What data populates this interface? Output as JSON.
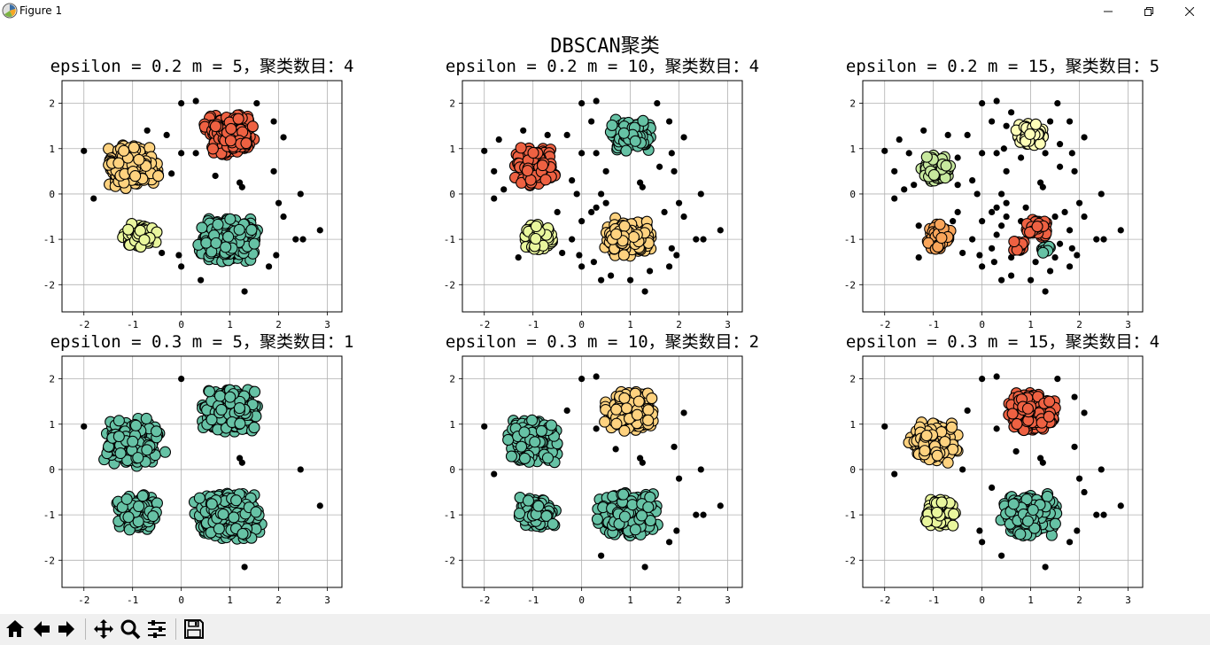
{
  "window": {
    "title": "Figure 1",
    "icons": [
      "matplotlib-logo-icon",
      "minimize-icon",
      "restore-icon",
      "close-icon"
    ]
  },
  "figure": {
    "suptitle": "DBSCAN聚类"
  },
  "toolbar": {
    "buttons": [
      "home-icon",
      "back-icon",
      "forward-icon",
      "pan-icon",
      "zoom-icon",
      "configure-subplots-icon",
      "save-icon"
    ]
  },
  "colors": {
    "noise": "#000000",
    "edge": "#000000",
    "spectral_red": "#ee6142",
    "spectral_orange": "#f9a55a",
    "spectral_light_orange": "#fed27f",
    "spectral_yellow_green": "#e9f69d",
    "spectral_green": "#c7e89e",
    "spectral_teal": "#66c2a5",
    "grid": "#b0b0b0"
  },
  "chart_data": [
    {
      "type": "scatter",
      "title": "epsilon = 0.2  m = 5，聚类数目：4",
      "xlim": [
        -2.45,
        3.3
      ],
      "ylim": [
        -2.6,
        2.5
      ],
      "xticks": [
        "-2",
        "-1",
        "0",
        "1",
        "2",
        "3"
      ],
      "yticks": [
        "2",
        "1",
        "0",
        "-1",
        "-2"
      ],
      "grid": true,
      "clusters": [
        {
          "center": [
            1.0,
            1.3
          ],
          "spread": [
            0.38,
            0.33
          ],
          "color": "#ee6142"
        },
        {
          "center": [
            -1.0,
            0.6
          ],
          "spread": [
            0.38,
            0.35
          ],
          "color": "#fed27f"
        },
        {
          "center": [
            -0.85,
            -0.95
          ],
          "spread": [
            0.25,
            0.22
          ],
          "color": "#e9f69d"
        },
        {
          "center": [
            0.95,
            -1.0
          ],
          "spread": [
            0.45,
            0.35
          ],
          "color": "#66c2a5"
        }
      ],
      "noise": [
        [
          -2.0,
          0.95
        ],
        [
          -1.8,
          -0.1
        ],
        [
          0.0,
          2.0
        ],
        [
          0.3,
          2.05
        ],
        [
          1.55,
          2.0
        ],
        [
          -0.3,
          1.3
        ],
        [
          0.0,
          0.9
        ],
        [
          1.2,
          0.25
        ],
        [
          1.25,
          0.15
        ],
        [
          0.7,
          0.4
        ],
        [
          2.1,
          1.25
        ],
        [
          1.3,
          -2.15
        ],
        [
          2.45,
          0.0
        ],
        [
          2.85,
          -0.8
        ],
        [
          2.35,
          -1.0
        ],
        [
          2.5,
          -1.0
        ],
        [
          1.8,
          -1.6
        ],
        [
          0.0,
          -1.6
        ],
        [
          -0.4,
          -1.3
        ],
        [
          2.1,
          -0.5
        ],
        [
          0.3,
          0.9
        ],
        [
          1.9,
          0.5
        ],
        [
          -0.2,
          0.45
        ],
        [
          -0.05,
          -1.35
        ],
        [
          0.4,
          -1.9
        ],
        [
          1.95,
          -1.35
        ],
        [
          2.0,
          -0.2
        ],
        [
          -0.7,
          1.4
        ],
        [
          1.9,
          1.6
        ]
      ]
    },
    {
      "type": "scatter",
      "title": "epsilon = 0.2  m = 10，聚类数目：4",
      "xlim": [
        -2.45,
        3.3
      ],
      "ylim": [
        -2.6,
        2.5
      ],
      "xticks": [
        "-2",
        "-1",
        "0",
        "1",
        "2",
        "3"
      ],
      "yticks": [
        "2",
        "1",
        "0",
        "-1",
        "-2"
      ],
      "grid": true,
      "clusters": [
        {
          "center": [
            1.0,
            1.3
          ],
          "spread": [
            0.3,
            0.25
          ],
          "color": "#66c2a5"
        },
        {
          "center": [
            -0.95,
            0.6
          ],
          "spread": [
            0.3,
            0.3
          ],
          "color": "#ee6142"
        },
        {
          "center": [
            -0.85,
            -0.95
          ],
          "spread": [
            0.22,
            0.2
          ],
          "color": "#e9f69d"
        },
        {
          "center": [
            0.95,
            -0.95
          ],
          "spread": [
            0.38,
            0.3
          ],
          "color": "#fed27f"
        }
      ],
      "noise": [
        [
          -2.0,
          0.95
        ],
        [
          -1.8,
          -0.1
        ],
        [
          -1.8,
          0.5
        ],
        [
          0.0,
          2.0
        ],
        [
          0.3,
          2.05
        ],
        [
          1.55,
          2.0
        ],
        [
          -0.3,
          1.3
        ],
        [
          -0.2,
          0.3
        ],
        [
          -0.1,
          0.0
        ],
        [
          0.2,
          -0.4
        ],
        [
          0.0,
          0.9
        ],
        [
          1.2,
          0.25
        ],
        [
          1.25,
          0.15
        ],
        [
          0.5,
          0.5
        ],
        [
          2.1,
          1.25
        ],
        [
          1.3,
          -2.15
        ],
        [
          2.45,
          0.0
        ],
        [
          2.85,
          -0.8
        ],
        [
          2.35,
          -1.0
        ],
        [
          2.5,
          -1.0
        ],
        [
          1.8,
          -1.6
        ],
        [
          0.0,
          -1.6
        ],
        [
          -0.4,
          -1.3
        ],
        [
          2.1,
          -0.5
        ],
        [
          0.3,
          0.9
        ],
        [
          1.9,
          0.5
        ],
        [
          -0.05,
          -1.35
        ],
        [
          0.4,
          -1.9
        ],
        [
          1.95,
          -1.35
        ],
        [
          2.0,
          -0.2
        ],
        [
          -1.6,
          0.1
        ],
        [
          -1.7,
          1.2
        ],
        [
          1.8,
          1.6
        ],
        [
          1.85,
          0.9
        ],
        [
          0.3,
          -0.3
        ],
        [
          0.5,
          -0.2
        ],
        [
          1.7,
          -0.4
        ],
        [
          1.85,
          -1.2
        ],
        [
          0.6,
          -1.8
        ],
        [
          1.0,
          -1.9
        ],
        [
          -0.2,
          -1.0
        ],
        [
          0.25,
          -1.5
        ],
        [
          1.4,
          -1.7
        ],
        [
          -1.3,
          -1.4
        ],
        [
          -0.5,
          -0.4
        ],
        [
          0.2,
          1.6
        ],
        [
          0.4,
          0.0
        ],
        [
          1.6,
          0.6
        ],
        [
          -1.2,
          1.4
        ],
        [
          -0.7,
          1.3
        ],
        [
          0.0,
          -0.6
        ]
      ]
    },
    {
      "type": "scatter",
      "title": "epsilon = 0.2  m = 15，聚类数目：5",
      "xlim": [
        -2.45,
        3.3
      ],
      "ylim": [
        -2.6,
        2.5
      ],
      "xticks": [
        "-2",
        "-1",
        "0",
        "1",
        "2",
        "3"
      ],
      "yticks": [
        "2",
        "1",
        "0",
        "-1",
        "-2"
      ],
      "grid": true,
      "clusters": [
        {
          "center": [
            1.0,
            1.3
          ],
          "spread": [
            0.22,
            0.18
          ],
          "color": "#fefeb8"
        },
        {
          "center": [
            -0.95,
            0.55
          ],
          "spread": [
            0.22,
            0.22
          ],
          "color": "#c7e89e"
        },
        {
          "center": [
            -0.9,
            -0.95
          ],
          "spread": [
            0.18,
            0.2
          ],
          "color": "#f9a55a"
        },
        {
          "center": [
            1.15,
            -0.75
          ],
          "spread": [
            0.18,
            0.15
          ],
          "color": "#ee6142"
        },
        {
          "center": [
            0.75,
            -1.15
          ],
          "spread": [
            0.1,
            0.1
          ],
          "color": "#ee6142"
        },
        {
          "center": [
            1.3,
            -1.2
          ],
          "spread": [
            0.08,
            0.08
          ],
          "color": "#66c2a5"
        }
      ],
      "noise": [
        [
          -2.0,
          0.95
        ],
        [
          -1.8,
          -0.1
        ],
        [
          -1.8,
          0.5
        ],
        [
          0.0,
          2.0
        ],
        [
          0.3,
          2.05
        ],
        [
          1.55,
          2.0
        ],
        [
          -0.3,
          1.3
        ],
        [
          -0.2,
          0.3
        ],
        [
          -0.1,
          0.0
        ],
        [
          0.2,
          -0.4
        ],
        [
          0.0,
          0.9
        ],
        [
          1.2,
          0.25
        ],
        [
          1.25,
          0.15
        ],
        [
          0.5,
          0.5
        ],
        [
          2.1,
          1.25
        ],
        [
          1.3,
          -2.15
        ],
        [
          2.45,
          0.0
        ],
        [
          2.85,
          -0.8
        ],
        [
          2.35,
          -1.0
        ],
        [
          2.5,
          -1.0
        ],
        [
          1.8,
          -1.6
        ],
        [
          0.0,
          -1.6
        ],
        [
          -0.4,
          -1.3
        ],
        [
          2.1,
          -0.5
        ],
        [
          0.3,
          0.9
        ],
        [
          1.9,
          0.5
        ],
        [
          -0.05,
          -1.35
        ],
        [
          0.4,
          -1.9
        ],
        [
          1.95,
          -1.35
        ],
        [
          2.0,
          -0.2
        ],
        [
          -1.6,
          0.1
        ],
        [
          -1.7,
          1.2
        ],
        [
          1.8,
          1.6
        ],
        [
          1.85,
          0.9
        ],
        [
          0.3,
          -0.3
        ],
        [
          0.5,
          -0.2
        ],
        [
          1.7,
          -0.4
        ],
        [
          1.85,
          -1.2
        ],
        [
          0.6,
          -1.8
        ],
        [
          1.0,
          -1.9
        ],
        [
          -0.2,
          -1.0
        ],
        [
          0.25,
          -1.5
        ],
        [
          1.4,
          -1.7
        ],
        [
          -1.3,
          -1.4
        ],
        [
          -0.5,
          -0.4
        ],
        [
          0.2,
          1.6
        ],
        [
          0.4,
          0.0
        ],
        [
          1.6,
          0.6
        ],
        [
          -1.2,
          1.4
        ],
        [
          -0.7,
          1.3
        ],
        [
          0.0,
          -0.6
        ],
        [
          0.5,
          1.5
        ],
        [
          0.6,
          1.8
        ],
        [
          1.4,
          1.6
        ],
        [
          1.6,
          1.1
        ],
        [
          0.45,
          1.0
        ],
        [
          0.8,
          0.8
        ],
        [
          1.3,
          0.9
        ],
        [
          -1.5,
          0.9
        ],
        [
          -1.4,
          0.2
        ],
        [
          -0.5,
          0.8
        ],
        [
          -0.5,
          0.2
        ],
        [
          -0.6,
          -0.6
        ],
        [
          -1.3,
          -0.7
        ],
        [
          0.3,
          -0.9
        ],
        [
          0.5,
          -0.5
        ],
        [
          0.9,
          -0.3
        ],
        [
          1.5,
          -0.5
        ],
        [
          1.6,
          -1.1
        ],
        [
          1.1,
          -1.5
        ],
        [
          0.6,
          -1.4
        ],
        [
          1.5,
          -1.4
        ],
        [
          0.2,
          -1.2
        ],
        [
          0.8,
          -0.6
        ],
        [
          1.8,
          -0.8
        ],
        [
          0.4,
          -0.7
        ]
      ]
    },
    {
      "type": "scatter",
      "title": "epsilon = 0.3  m = 5，聚类数目：1",
      "xlim": [
        -2.45,
        3.3
      ],
      "ylim": [
        -2.6,
        2.5
      ],
      "xticks": [
        "-2",
        "-1",
        "0",
        "1",
        "2",
        "3"
      ],
      "yticks": [
        "2",
        "1",
        "0",
        "-1",
        "-2"
      ],
      "grid": true,
      "clusters": [
        {
          "center": [
            1.0,
            1.3
          ],
          "spread": [
            0.42,
            0.35
          ],
          "color": "#66c2a5"
        },
        {
          "center": [
            -1.0,
            0.6
          ],
          "spread": [
            0.42,
            0.38
          ],
          "color": "#66c2a5"
        },
        {
          "center": [
            -0.9,
            -0.95
          ],
          "spread": [
            0.3,
            0.28
          ],
          "color": "#66c2a5"
        },
        {
          "center": [
            0.95,
            -1.0
          ],
          "spread": [
            0.5,
            0.38
          ],
          "color": "#66c2a5"
        }
      ],
      "noise": [
        [
          -2.0,
          0.95
        ],
        [
          0.0,
          2.0
        ],
        [
          1.3,
          -2.15
        ],
        [
          2.45,
          0.0
        ],
        [
          2.85,
          -0.8
        ],
        [
          1.2,
          0.25
        ],
        [
          1.25,
          0.15
        ]
      ]
    },
    {
      "type": "scatter",
      "title": "epsilon = 0.3  m = 10，聚类数目：2",
      "xlim": [
        -2.45,
        3.3
      ],
      "ylim": [
        -2.6,
        2.5
      ],
      "xticks": [
        "-2",
        "-1",
        "0",
        "1",
        "2",
        "3"
      ],
      "yticks": [
        "2",
        "1",
        "0",
        "-1",
        "-2"
      ],
      "grid": true,
      "clusters": [
        {
          "center": [
            1.0,
            1.3
          ],
          "spread": [
            0.38,
            0.32
          ],
          "color": "#fed27f"
        },
        {
          "center": [
            -1.0,
            0.6
          ],
          "spread": [
            0.38,
            0.35
          ],
          "color": "#66c2a5"
        },
        {
          "center": [
            -0.9,
            -0.95
          ],
          "spread": [
            0.28,
            0.25
          ],
          "color": "#66c2a5"
        },
        {
          "center": [
            0.95,
            -1.0
          ],
          "spread": [
            0.45,
            0.35
          ],
          "color": "#66c2a5"
        }
      ],
      "noise": [
        [
          -2.0,
          0.95
        ],
        [
          -1.8,
          -0.1
        ],
        [
          0.0,
          2.0
        ],
        [
          0.3,
          2.05
        ],
        [
          1.2,
          0.25
        ],
        [
          1.25,
          0.15
        ],
        [
          1.3,
          -2.15
        ],
        [
          2.45,
          0.0
        ],
        [
          2.85,
          -0.8
        ],
        [
          2.35,
          -1.0
        ],
        [
          2.5,
          -1.0
        ],
        [
          1.8,
          -1.6
        ],
        [
          1.9,
          0.5
        ],
        [
          0.3,
          0.9
        ],
        [
          2.1,
          1.25
        ],
        [
          -0.3,
          1.3
        ],
        [
          2.0,
          -0.2
        ],
        [
          0.7,
          0.45
        ],
        [
          1.95,
          -1.35
        ],
        [
          0.4,
          -1.9
        ]
      ]
    },
    {
      "type": "scatter",
      "title": "epsilon = 0.3  m = 15，聚类数目：4",
      "xlim": [
        -2.45,
        3.3
      ],
      "ylim": [
        -2.6,
        2.5
      ],
      "xticks": [
        "-2",
        "-1",
        "0",
        "1",
        "2",
        "3"
      ],
      "yticks": [
        "2",
        "1",
        "0",
        "-1",
        "-2"
      ],
      "grid": true,
      "clusters": [
        {
          "center": [
            1.0,
            1.3
          ],
          "spread": [
            0.38,
            0.32
          ],
          "color": "#ee6142"
        },
        {
          "center": [
            -1.0,
            0.6
          ],
          "spread": [
            0.36,
            0.33
          ],
          "color": "#fed27f"
        },
        {
          "center": [
            -0.85,
            -0.95
          ],
          "spread": [
            0.24,
            0.22
          ],
          "color": "#e9f69d"
        },
        {
          "center": [
            0.95,
            -1.0
          ],
          "spread": [
            0.42,
            0.33
          ],
          "color": "#66c2a5"
        }
      ],
      "noise": [
        [
          -2.0,
          0.95
        ],
        [
          -1.8,
          -0.1
        ],
        [
          0.0,
          2.0
        ],
        [
          0.3,
          2.05
        ],
        [
          1.55,
          2.0
        ],
        [
          1.2,
          0.25
        ],
        [
          1.25,
          0.15
        ],
        [
          0.7,
          0.4
        ],
        [
          2.1,
          1.25
        ],
        [
          1.3,
          -2.15
        ],
        [
          2.45,
          0.0
        ],
        [
          2.85,
          -0.8
        ],
        [
          2.35,
          -1.0
        ],
        [
          2.5,
          -1.0
        ],
        [
          1.8,
          -1.6
        ],
        [
          0.0,
          -1.6
        ],
        [
          2.1,
          -0.5
        ],
        [
          0.3,
          0.9
        ],
        [
          1.9,
          0.5
        ],
        [
          -0.05,
          -1.35
        ],
        [
          0.4,
          -1.9
        ],
        [
          1.95,
          -1.35
        ],
        [
          2.0,
          -0.2
        ],
        [
          -0.3,
          1.3
        ],
        [
          1.9,
          1.6
        ],
        [
          -0.4,
          0.0
        ],
        [
          0.2,
          -0.4
        ]
      ]
    }
  ]
}
